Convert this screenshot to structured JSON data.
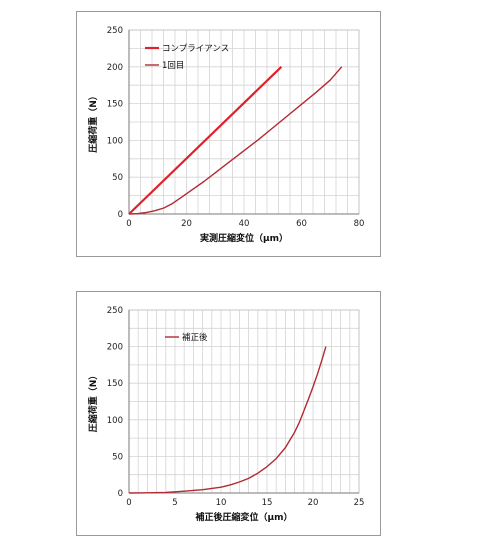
{
  "chart_data": [
    {
      "type": "line",
      "xlabel": "実測圧縮変位（μm）",
      "ylabel": "圧縮荷重（N）",
      "xlim": [
        0,
        80
      ],
      "ylim": [
        0,
        250
      ],
      "xticks": [
        0,
        20,
        40,
        60,
        80
      ],
      "yticks": [
        0,
        50,
        100,
        150,
        200,
        250
      ],
      "grid": true,
      "legend_position": "top-left",
      "series": [
        {
          "name": "コンプライアンス",
          "color": "#e0202a",
          "x": [
            0,
            53
          ],
          "y": [
            0,
            200
          ]
        },
        {
          "name": "1回目",
          "color": "#b22a33",
          "x": [
            0,
            3,
            6,
            9,
            12,
            15,
            18,
            22,
            26,
            30,
            35,
            40,
            45,
            50,
            55,
            60,
            65,
            70,
            74
          ],
          "y": [
            0,
            0.5,
            2,
            4.5,
            8,
            14,
            22,
            33,
            44,
            56,
            71,
            86,
            101,
            117,
            133,
            149,
            165,
            182,
            200
          ]
        }
      ]
    },
    {
      "type": "line",
      "xlabel": "補正後圧縮変位（μm）",
      "ylabel": "圧縮荷重（N）",
      "xlim": [
        0,
        25
      ],
      "ylim": [
        0,
        250
      ],
      "xticks": [
        0,
        5,
        10,
        15,
        20,
        25
      ],
      "yticks": [
        0,
        50,
        100,
        150,
        200,
        250
      ],
      "grid": true,
      "legend_position": "top-left",
      "series": [
        {
          "name": "補正後",
          "color": "#b22a33",
          "x": [
            0,
            2,
            4,
            6,
            8,
            10,
            11,
            12,
            13,
            14,
            15,
            16,
            17,
            18,
            18.5,
            19,
            19.5,
            20,
            20.5,
            21,
            21.4
          ],
          "y": [
            0,
            0.2,
            0.8,
            2.5,
            4.5,
            8,
            11,
            15,
            20,
            27,
            36,
            47,
            62,
            83,
            96,
            112,
            128,
            145,
            163,
            183,
            200
          ]
        }
      ]
    }
  ]
}
